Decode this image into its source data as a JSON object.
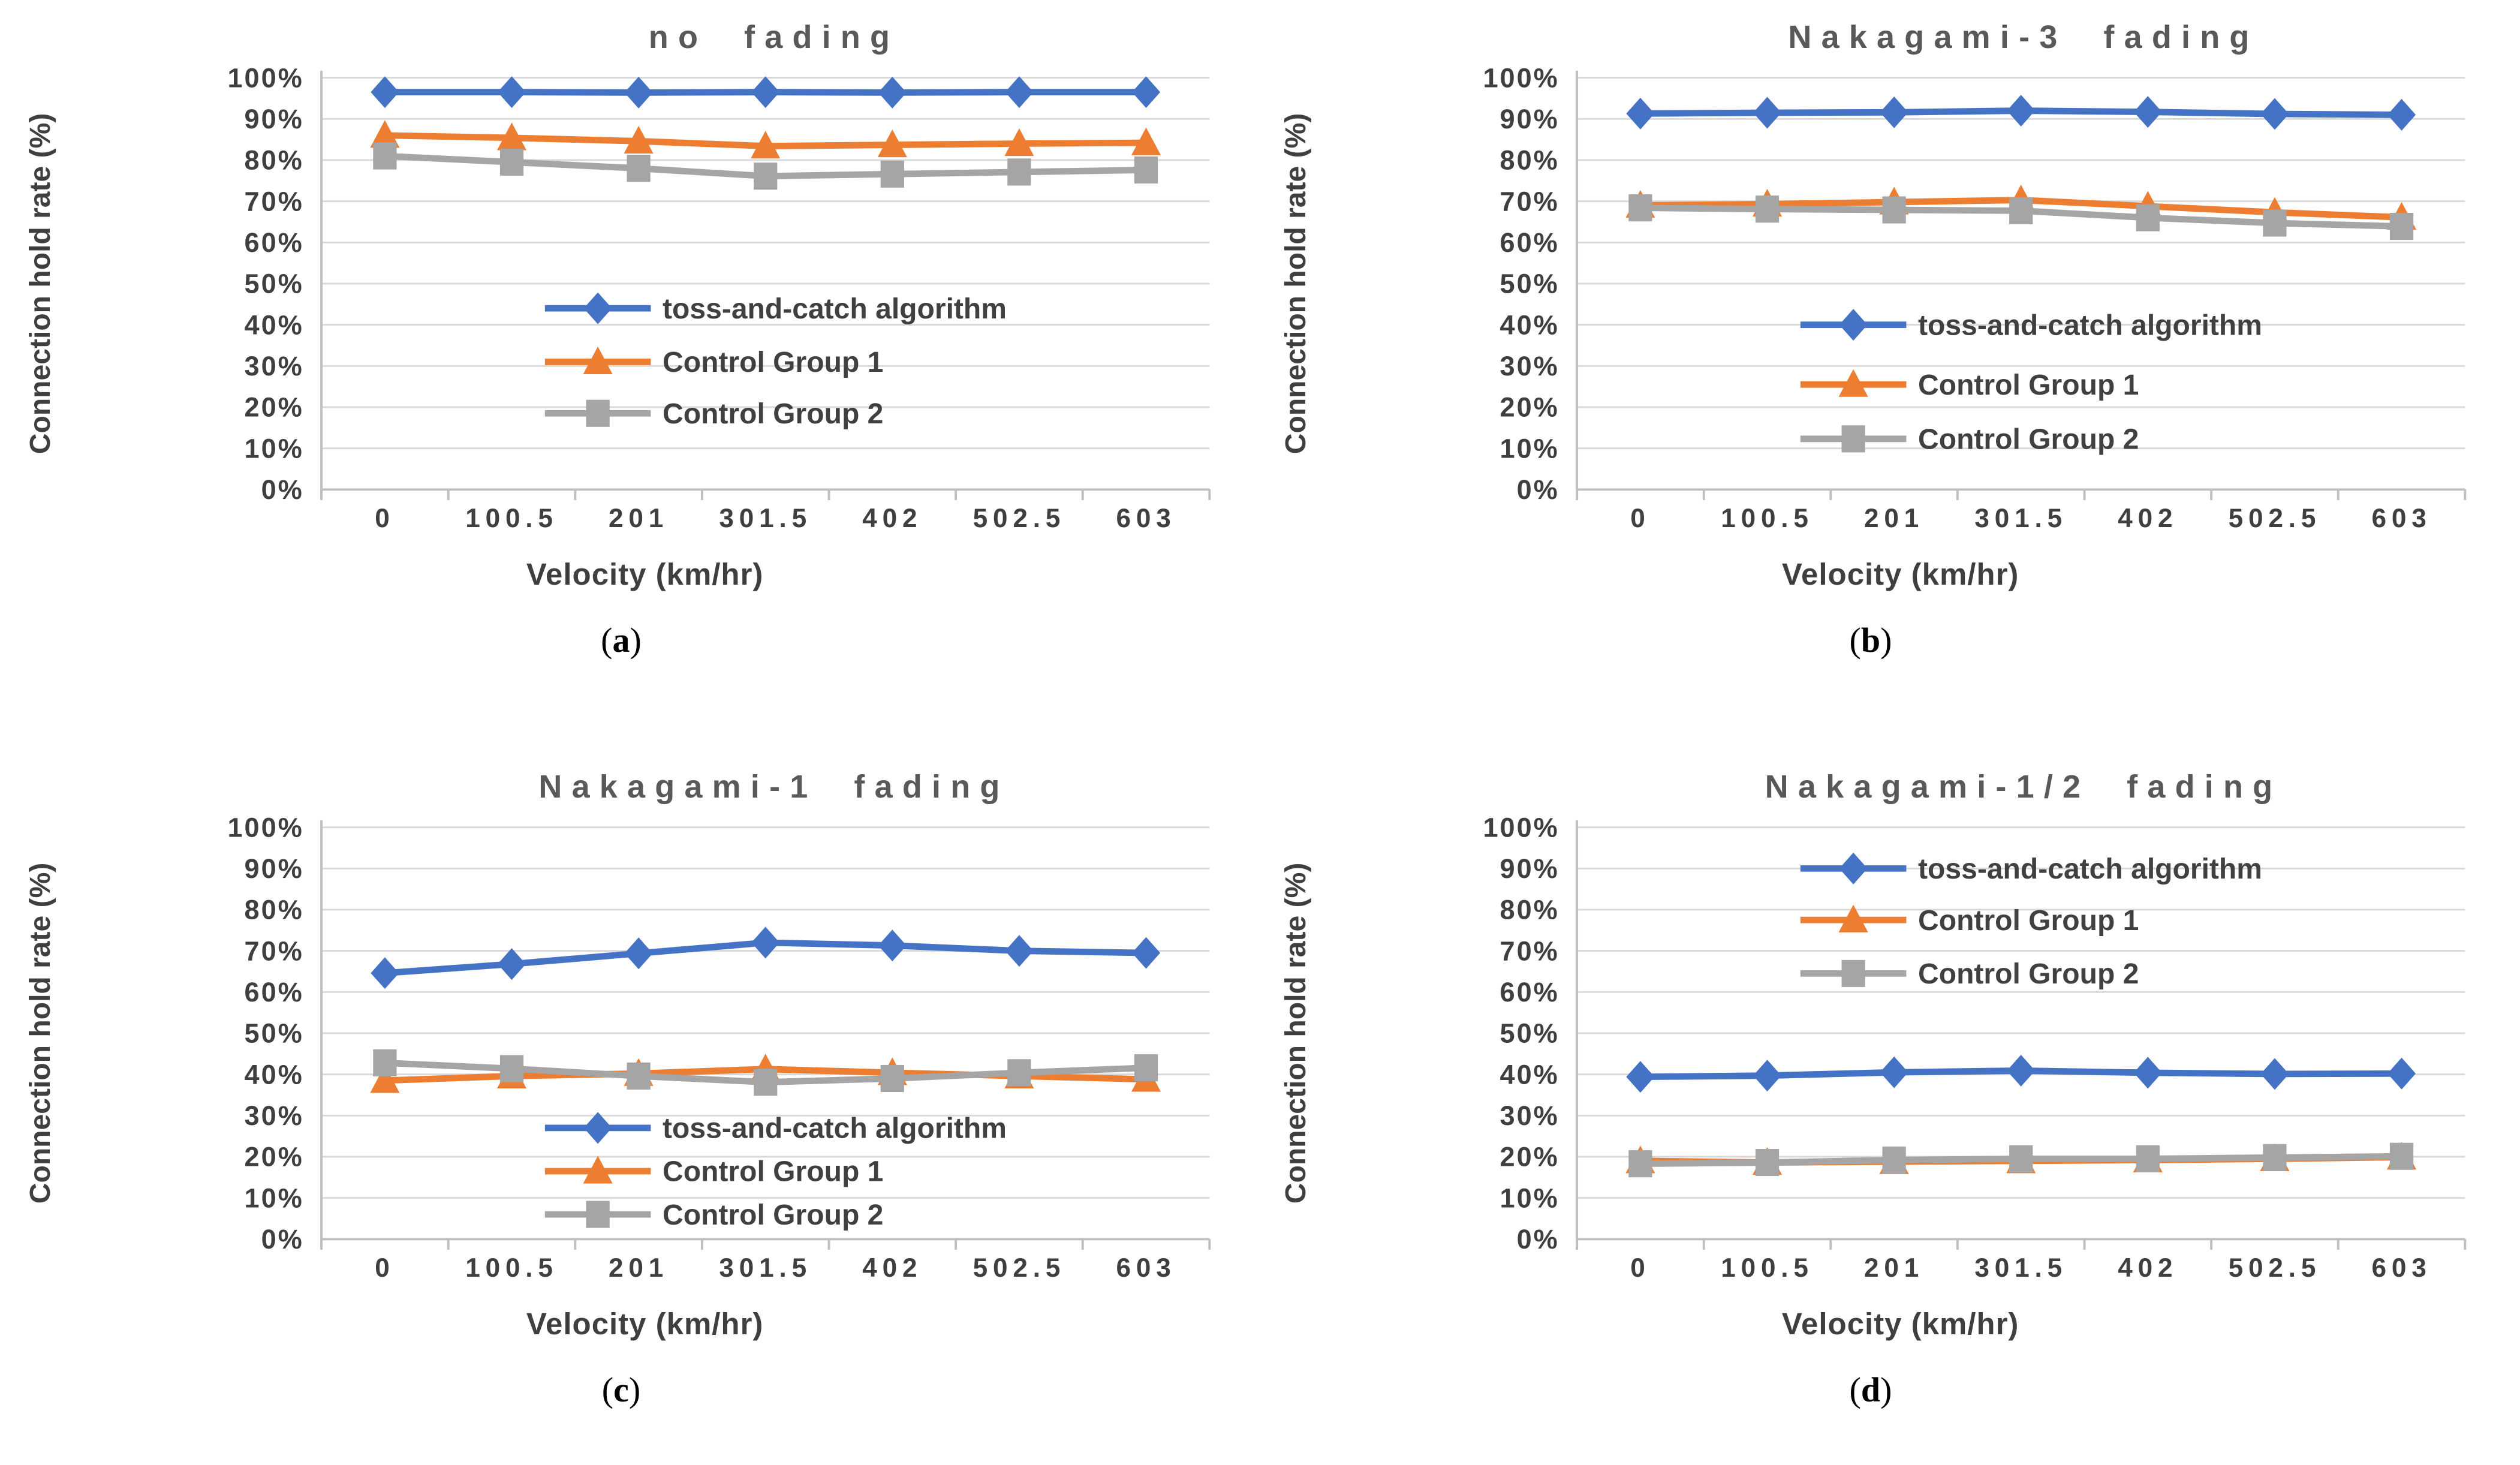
{
  "figure": {
    "caption_open": "(",
    "caption_close": ")",
    "panels": [
      {
        "caption_letter": "a"
      },
      {
        "caption_letter": "b"
      },
      {
        "caption_letter": "c"
      },
      {
        "caption_letter": "d"
      }
    ]
  },
  "palette": {
    "algorithm_blue": "#4472C4",
    "control1_orange": "#ED7D31",
    "control2_gray": "#A5A5A5",
    "gridline": "#D9D9D9",
    "axis_line": "#BFBFBF",
    "tick_text": "#3f3f3f",
    "title_text": "#595959"
  },
  "chart_data": [
    {
      "type": "line",
      "title": "no fading",
      "xlabel": "Velocity (km/hr)",
      "ylabel": "Connection hold rate (%)",
      "categories": [
        "0",
        "100.5",
        "201",
        "301.5",
        "402",
        "502.5",
        "603"
      ],
      "ylim": [
        0,
        100
      ],
      "ytick_step": 10,
      "ytick_format": "percent",
      "grid": "horizontal",
      "legend_position": "inside",
      "legend_y_values": [
        44,
        31,
        18.5
      ],
      "series": [
        {
          "name": "toss-and-catch algorithm",
          "color": "#4472C4",
          "marker": "diamond",
          "values": [
            96.5,
            96.5,
            96.4,
            96.5,
            96.4,
            96.5,
            96.5
          ]
        },
        {
          "name": "Control Group 1",
          "color": "#ED7D31",
          "marker": "triangle",
          "values": [
            86,
            85.4,
            84.6,
            83.4,
            83.7,
            84,
            84.2
          ]
        },
        {
          "name": "Control Group 2",
          "color": "#A5A5A5",
          "marker": "square",
          "values": [
            81,
            79.5,
            78,
            76.1,
            76.6,
            77.1,
            77.6
          ]
        }
      ]
    },
    {
      "type": "line",
      "title": "Nakagami-3 fading",
      "xlabel": "Velocity (km/hr)",
      "ylabel": "Connection hold rate (%)",
      "categories": [
        "0",
        "100.5",
        "201",
        "301.5",
        "402",
        "502.5",
        "603"
      ],
      "ylim": [
        0,
        100
      ],
      "ytick_step": 10,
      "ytick_format": "percent",
      "grid": "horizontal",
      "legend_position": "inside",
      "legend_y_values": [
        40,
        25.5,
        12.3
      ],
      "series": [
        {
          "name": "toss-and-catch algorithm",
          "color": "#4472C4",
          "marker": "diamond",
          "values": [
            91.3,
            91.5,
            91.6,
            92,
            91.7,
            91.2,
            91
          ]
        },
        {
          "name": "Control Group 1",
          "color": "#ED7D31",
          "marker": "triangle",
          "values": [
            69,
            69.3,
            69.8,
            70.3,
            68.8,
            67.3,
            66.1
          ]
        },
        {
          "name": "Control Group 2",
          "color": "#A5A5A5",
          "marker": "square",
          "values": [
            68.4,
            68.1,
            67.9,
            67.7,
            66,
            64.7,
            63.9
          ]
        }
      ]
    },
    {
      "type": "line",
      "title": "Nakagami-1 fading",
      "xlabel": "Velocity (km/hr)",
      "ylabel": "Connection hold rate (%)",
      "categories": [
        "0",
        "100.5",
        "201",
        "301.5",
        "402",
        "502.5",
        "603"
      ],
      "ylim": [
        0,
        100
      ],
      "ytick_step": 10,
      "ytick_format": "percent",
      "grid": "horizontal",
      "legend_position": "inside",
      "legend_y_values": [
        27,
        16.5,
        6
      ],
      "series": [
        {
          "name": "toss-and-catch algorithm",
          "color": "#4472C4",
          "marker": "diamond",
          "values": [
            64.6,
            66.8,
            69.4,
            72,
            71.3,
            70,
            69.5
          ]
        },
        {
          "name": "Control Group 1",
          "color": "#ED7D31",
          "marker": "triangle",
          "values": [
            38.5,
            39.6,
            40.2,
            41.3,
            40.4,
            39.6,
            38.8
          ]
        },
        {
          "name": "Control Group 2",
          "color": "#A5A5A5",
          "marker": "square",
          "values": [
            42.8,
            41.4,
            39.6,
            38.1,
            39,
            40.4,
            41.6
          ]
        }
      ]
    },
    {
      "type": "line",
      "title": "Nakagami-1/2 fading",
      "xlabel": "Velocity (km/hr)",
      "ylabel": "Connection hold rate (%)",
      "categories": [
        "0",
        "100.5",
        "201",
        "301.5",
        "402",
        "502.5",
        "603"
      ],
      "ylim": [
        0,
        100
      ],
      "ytick_step": 10,
      "ytick_format": "percent",
      "grid": "horizontal",
      "legend_position": "inside",
      "legend_y_values": [
        90,
        77.5,
        64.5
      ],
      "series": [
        {
          "name": "toss-and-catch algorithm",
          "color": "#4472C4",
          "marker": "diamond",
          "values": [
            39.4,
            39.7,
            40.5,
            40.9,
            40.4,
            40.1,
            40.2
          ]
        },
        {
          "name": "Control Group 1",
          "color": "#ED7D31",
          "marker": "triangle",
          "values": [
            19,
            18.6,
            18.8,
            19,
            19.2,
            19.5,
            19.9
          ]
        },
        {
          "name": "Control Group 2",
          "color": "#A5A5A5",
          "marker": "square",
          "values": [
            18.3,
            18.6,
            19.2,
            19.5,
            19.5,
            19.8,
            20.1
          ]
        }
      ]
    }
  ]
}
